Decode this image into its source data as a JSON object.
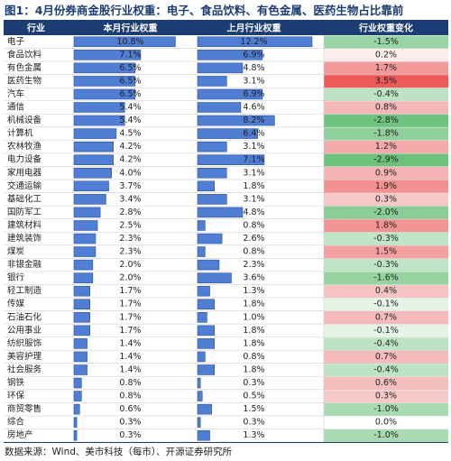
{
  "title": "图1：4月份券商金股行业权重：电子、食品饮料、有色金属、医药生物占比靠前",
  "source": "数据来源：Wind、美市科技（每市）、开源证券研究所",
  "colors": {
    "header_bg": "#1c3d74",
    "header_text": "#ffffff",
    "bar_fill": "#4f7ed4",
    "bar_border": "#2a4f9c",
    "row_line": "#d0d0d0",
    "neg_strong": "#59b96b",
    "neg_weak": "#c9e9cf",
    "pos_strong": "#ee5a5a",
    "pos_weak": "#f8d2d2"
  },
  "chart_data": {
    "type": "table",
    "columns": [
      "行业",
      "本月行业权重",
      "上月行业权重",
      "行业权重变化"
    ],
    "rows": [
      {
        "industry": "电子",
        "this_month": 10.8,
        "this_month_label": "10.8%",
        "last_month": 12.2,
        "last_month_label": "12.2%",
        "change": -1.5,
        "change_label": "-1.5%"
      },
      {
        "industry": "食品饮料",
        "this_month": 7.1,
        "this_month_label": "7.1%",
        "last_month": 6.9,
        "last_month_label": "6.9%",
        "change": 0.2,
        "change_label": "0.2%"
      },
      {
        "industry": "有色金属",
        "this_month": 6.5,
        "this_month_label": "6.5%",
        "last_month": 4.8,
        "last_month_label": "4.8%",
        "change": 1.7,
        "change_label": "1.7%"
      },
      {
        "industry": "医药生物",
        "this_month": 6.5,
        "this_month_label": "6.5%",
        "last_month": 3.1,
        "last_month_label": "3.1%",
        "change": 3.5,
        "change_label": "3.5%"
      },
      {
        "industry": "汽车",
        "this_month": 6.5,
        "this_month_label": "6.5%",
        "last_month": 6.9,
        "last_month_label": "6.9%",
        "change": -0.4,
        "change_label": "-0.4%"
      },
      {
        "industry": "通信",
        "this_month": 5.4,
        "this_month_label": "5.4%",
        "last_month": 4.6,
        "last_month_label": "4.6%",
        "change": 0.8,
        "change_label": "0.8%"
      },
      {
        "industry": "机械设备",
        "this_month": 5.4,
        "this_month_label": "5.4%",
        "last_month": 8.2,
        "last_month_label": "8.2%",
        "change": -2.8,
        "change_label": "-2.8%"
      },
      {
        "industry": "计算机",
        "this_month": 4.5,
        "this_month_label": "4.5%",
        "last_month": 6.4,
        "last_month_label": "6.4%",
        "change": -1.8,
        "change_label": "-1.8%"
      },
      {
        "industry": "农林牧渔",
        "this_month": 4.2,
        "this_month_label": "4.2%",
        "last_month": 3.1,
        "last_month_label": "3.1%",
        "change": 1.2,
        "change_label": "1.2%"
      },
      {
        "industry": "电力设备",
        "this_month": 4.2,
        "this_month_label": "4.2%",
        "last_month": 7.1,
        "last_month_label": "7.1%",
        "change": -2.9,
        "change_label": "-2.9%"
      },
      {
        "industry": "家用电器",
        "this_month": 4.0,
        "this_month_label": "4.0%",
        "last_month": 3.1,
        "last_month_label": "3.1%",
        "change": 0.9,
        "change_label": "0.9%"
      },
      {
        "industry": "交通运输",
        "this_month": 3.7,
        "this_month_label": "3.7%",
        "last_month": 1.8,
        "last_month_label": "1.8%",
        "change": 1.9,
        "change_label": "1.9%"
      },
      {
        "industry": "基础化工",
        "this_month": 3.4,
        "this_month_label": "3.4%",
        "last_month": 3.1,
        "last_month_label": "3.1%",
        "change": 0.3,
        "change_label": "0.3%"
      },
      {
        "industry": "国防军工",
        "this_month": 2.8,
        "this_month_label": "2.8%",
        "last_month": 4.8,
        "last_month_label": "4.8%",
        "change": -2.0,
        "change_label": "-2.0%"
      },
      {
        "industry": "建筑材料",
        "this_month": 2.5,
        "this_month_label": "2.5%",
        "last_month": 0.8,
        "last_month_label": "0.8%",
        "change": 1.8,
        "change_label": "1.8%"
      },
      {
        "industry": "建筑装饰",
        "this_month": 2.3,
        "this_month_label": "2.3%",
        "last_month": 2.6,
        "last_month_label": "2.6%",
        "change": -0.3,
        "change_label": "-0.3%"
      },
      {
        "industry": "煤炭",
        "this_month": 2.3,
        "this_month_label": "2.3%",
        "last_month": 0.8,
        "last_month_label": "0.8%",
        "change": 1.5,
        "change_label": "1.5%"
      },
      {
        "industry": "非银金融",
        "this_month": 2.0,
        "this_month_label": "2.0%",
        "last_month": 2.3,
        "last_month_label": "2.3%",
        "change": -0.3,
        "change_label": "-0.3%"
      },
      {
        "industry": "银行",
        "this_month": 2.0,
        "this_month_label": "2.0%",
        "last_month": 3.6,
        "last_month_label": "3.6%",
        "change": -1.6,
        "change_label": "-1.6%"
      },
      {
        "industry": "轻工制造",
        "this_month": 1.7,
        "this_month_label": "1.7%",
        "last_month": 1.3,
        "last_month_label": "1.3%",
        "change": 0.4,
        "change_label": "0.4%"
      },
      {
        "industry": "传媒",
        "this_month": 1.7,
        "this_month_label": "1.7%",
        "last_month": 1.8,
        "last_month_label": "1.8%",
        "change": -0.1,
        "change_label": "-0.1%"
      },
      {
        "industry": "石油石化",
        "this_month": 1.7,
        "this_month_label": "1.7%",
        "last_month": 1.0,
        "last_month_label": "1.0%",
        "change": 0.7,
        "change_label": "0.7%"
      },
      {
        "industry": "公用事业",
        "this_month": 1.7,
        "this_month_label": "1.7%",
        "last_month": 1.8,
        "last_month_label": "1.8%",
        "change": -0.1,
        "change_label": "-0.1%"
      },
      {
        "industry": "纺织服饰",
        "this_month": 1.4,
        "this_month_label": "1.4%",
        "last_month": 1.8,
        "last_month_label": "1.8%",
        "change": -0.4,
        "change_label": "-0.4%"
      },
      {
        "industry": "美容护理",
        "this_month": 1.4,
        "this_month_label": "1.4%",
        "last_month": 0.8,
        "last_month_label": "0.8%",
        "change": 0.7,
        "change_label": "0.7%"
      },
      {
        "industry": "社会服务",
        "this_month": 1.4,
        "this_month_label": "1.4%",
        "last_month": 1.8,
        "last_month_label": "1.8%",
        "change": -0.4,
        "change_label": "-0.4%"
      },
      {
        "industry": "钢铁",
        "this_month": 0.8,
        "this_month_label": "0.8%",
        "last_month": 0.3,
        "last_month_label": "0.3%",
        "change": 0.6,
        "change_label": "0.6%"
      },
      {
        "industry": "环保",
        "this_month": 0.8,
        "this_month_label": "0.8%",
        "last_month": 0.5,
        "last_month_label": "0.5%",
        "change": 0.3,
        "change_label": "0.3%"
      },
      {
        "industry": "商贸零售",
        "this_month": 0.6,
        "this_month_label": "0.6%",
        "last_month": 1.5,
        "last_month_label": "1.5%",
        "change": -1.0,
        "change_label": "-1.0%"
      },
      {
        "industry": "综合",
        "this_month": 0.3,
        "this_month_label": "0.3%",
        "last_month": 0.3,
        "last_month_label": "0.3%",
        "change": 0.0,
        "change_label": "0.0%"
      },
      {
        "industry": "房地产",
        "this_month": 0.3,
        "this_month_label": "0.3%",
        "last_month": 1.3,
        "last_month_label": "1.3%",
        "change": -1.0,
        "change_label": "-1.0%"
      }
    ]
  }
}
